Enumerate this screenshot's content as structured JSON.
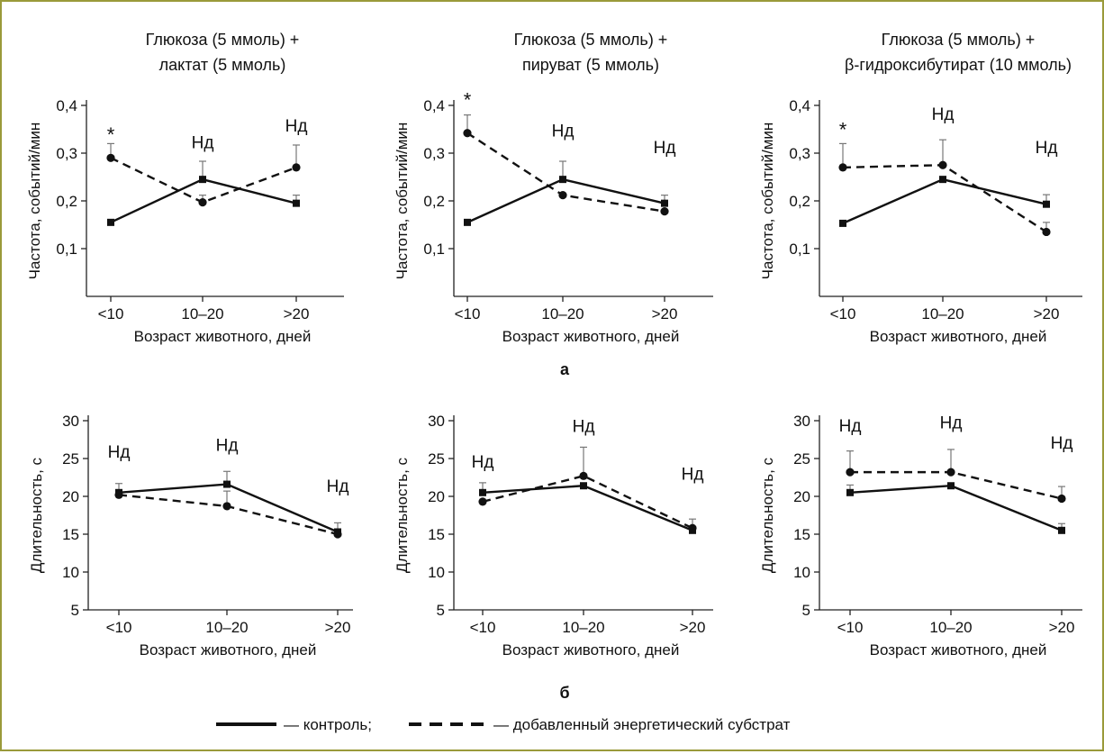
{
  "figure": {
    "frame_color": "#9a9a3a",
    "row_labels": {
      "top": "а",
      "bottom": "б"
    },
    "legend": {
      "control_label": "— контроль;",
      "substrate_label": "— добавленный энергетический субстрат"
    },
    "x_categories": [
      "<10",
      "10–20",
      ">20"
    ],
    "x_label": "Возраст животного, дней"
  },
  "chart_data": [
    {
      "type": "line",
      "title": [
        "Глюкоза (5 ммоль) +",
        "лактат (5 ммоль)"
      ],
      "xlabel": "Возраст животного, дней",
      "ylabel": "Частота, событий/мин",
      "categories": [
        "<10",
        "10–20",
        ">20"
      ],
      "ylim": [
        0.0,
        0.4
      ],
      "yticks": [
        0.1,
        0.2,
        0.3,
        0.4
      ],
      "ytick_labels": [
        "0,1",
        "0,2",
        "0,3",
        "0,4"
      ],
      "series": [
        {
          "style": "solid",
          "values": [
            0.155,
            0.245,
            0.195
          ],
          "errors": [
            0.0,
            0.038,
            0.017
          ]
        },
        {
          "style": "dashed",
          "values": [
            0.29,
            0.197,
            0.27
          ],
          "errors": [
            0.03,
            0.015,
            0.047
          ]
        }
      ],
      "annotations": [
        {
          "category": "<10",
          "text": "*",
          "y": 0.325
        },
        {
          "category": "10–20",
          "text": "Нд",
          "y": 0.31
        },
        {
          "category": ">20",
          "text": "Нд",
          "y": 0.345
        }
      ]
    },
    {
      "type": "line",
      "title": [
        "Глюкоза (5 ммоль) +",
        "пируват (5 ммоль)"
      ],
      "xlabel": "Возраст животного, дней",
      "ylabel": "Частота, событий/мин",
      "categories": [
        "<10",
        "10–20",
        ">20"
      ],
      "ylim": [
        0.0,
        0.4
      ],
      "yticks": [
        0.1,
        0.2,
        0.3,
        0.4
      ],
      "ytick_labels": [
        "0,1",
        "0,2",
        "0,3",
        "0,4"
      ],
      "series": [
        {
          "style": "solid",
          "values": [
            0.155,
            0.245,
            0.195
          ],
          "errors": [
            0.0,
            0.038,
            0.017
          ]
        },
        {
          "style": "dashed",
          "values": [
            0.342,
            0.212,
            0.178
          ],
          "errors": [
            0.038,
            0.0,
            0.0
          ]
        }
      ],
      "annotations": [
        {
          "category": "<10",
          "text": "*",
          "y": 0.397
        },
        {
          "category": "10–20",
          "text": "Нд",
          "y": 0.335
        },
        {
          "category": ">20",
          "text": "Нд",
          "y": 0.3
        }
      ]
    },
    {
      "type": "line",
      "title": [
        "Глюкоза (5 ммоль) +",
        "β-гидроксибутират (10 ммоль)"
      ],
      "xlabel": "Возраст животного, дней",
      "ylabel": "Частота, событий/мин",
      "categories": [
        "<10",
        "10–20",
        ">20"
      ],
      "ylim": [
        0.0,
        0.4
      ],
      "yticks": [
        0.1,
        0.2,
        0.3,
        0.4
      ],
      "ytick_labels": [
        "0,1",
        "0,2",
        "0,3",
        "0,4"
      ],
      "series": [
        {
          "style": "solid",
          "values": [
            0.153,
            0.245,
            0.193
          ],
          "errors": [
            0.0,
            0.0,
            0.02
          ]
        },
        {
          "style": "dashed",
          "values": [
            0.27,
            0.275,
            0.135
          ],
          "errors": [
            0.05,
            0.053,
            0.02
          ]
        }
      ],
      "annotations": [
        {
          "category": "<10",
          "text": "*",
          "y": 0.335
        },
        {
          "category": "10–20",
          "text": "Нд",
          "y": 0.37
        },
        {
          "category": ">20",
          "text": "Нд",
          "y": 0.3
        }
      ]
    },
    {
      "type": "line",
      "title": [],
      "xlabel": "Возраст животного, дней",
      "ylabel": "Длительность, с",
      "categories": [
        "<10",
        "10–20",
        ">20"
      ],
      "ylim": [
        5,
        30
      ],
      "yticks": [
        5,
        10,
        15,
        20,
        25,
        30
      ],
      "ytick_labels": [
        "5",
        "10",
        "15",
        "20",
        "25",
        "30"
      ],
      "series": [
        {
          "style": "solid",
          "values": [
            20.5,
            21.6,
            15.3
          ],
          "errors": [
            1.2,
            1.7,
            1.2
          ]
        },
        {
          "style": "dashed",
          "values": [
            20.2,
            18.7,
            15.0
          ],
          "errors": [
            0.0,
            2.0,
            0.0
          ]
        }
      ],
      "annotations": [
        {
          "category": "<10",
          "text": "Нд",
          "y": 25.1
        },
        {
          "category": "10–20",
          "text": "Нд",
          "y": 26.0
        },
        {
          "category": ">20",
          "text": "Нд",
          "y": 20.6
        }
      ]
    },
    {
      "type": "line",
      "title": [],
      "xlabel": "Возраст животного, дней",
      "ylabel": "Длительность, с",
      "categories": [
        "<10",
        "10–20",
        ">20"
      ],
      "ylim": [
        5,
        30
      ],
      "yticks": [
        5,
        10,
        15,
        20,
        25,
        30
      ],
      "ytick_labels": [
        "5",
        "10",
        "15",
        "20",
        "25",
        "30"
      ],
      "series": [
        {
          "style": "solid",
          "values": [
            20.5,
            21.4,
            15.5
          ],
          "errors": [
            1.3,
            0.0,
            1.5
          ]
        },
        {
          "style": "dashed",
          "values": [
            19.3,
            22.7,
            15.8
          ],
          "errors": [
            0.0,
            3.8,
            0.0
          ]
        }
      ],
      "annotations": [
        {
          "category": "<10",
          "text": "Нд",
          "y": 23.8
        },
        {
          "category": "10–20",
          "text": "Нд",
          "y": 28.5
        },
        {
          "category": ">20",
          "text": "Нд",
          "y": 22.2
        }
      ]
    },
    {
      "type": "line",
      "title": [],
      "xlabel": "Возраст животного, дней",
      "ylabel": "Длительность, с",
      "categories": [
        "<10",
        "10–20",
        ">20"
      ],
      "ylim": [
        5,
        30
      ],
      "yticks": [
        5,
        10,
        15,
        20,
        25,
        30
      ],
      "ytick_labels": [
        "5",
        "10",
        "15",
        "20",
        "25",
        "30"
      ],
      "series": [
        {
          "style": "solid",
          "values": [
            20.5,
            21.4,
            15.5
          ],
          "errors": [
            1.0,
            0.0,
            0.9
          ]
        },
        {
          "style": "dashed",
          "values": [
            23.2,
            23.2,
            19.7
          ],
          "errors": [
            2.8,
            3.0,
            1.6
          ]
        }
      ],
      "annotations": [
        {
          "category": "<10",
          "text": "Нд",
          "y": 28.6
        },
        {
          "category": "10–20",
          "text": "Нд",
          "y": 29.0
        },
        {
          "category": ">20",
          "text": "Нд",
          "y": 26.3
        }
      ]
    }
  ]
}
